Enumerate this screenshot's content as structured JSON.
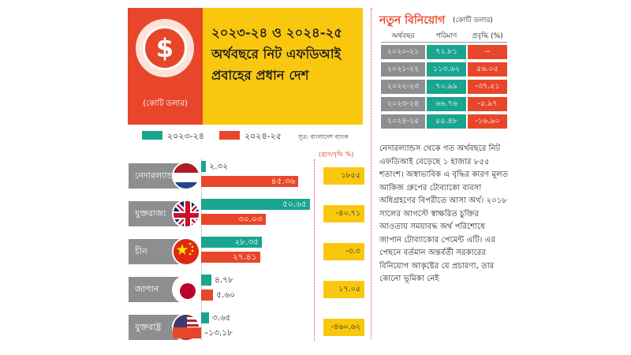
{
  "header": {
    "title": "২০২৩-২৪ ও ২০২৪-২৫ অর্থবছরে নিট এফডিআই প্রবাহের প্রধান দেশ",
    "unit": "(কোটি ডলার)",
    "coin_symbol": "$"
  },
  "legend": {
    "items": [
      "২০২৩-২৪",
      "২০২৪-২৫"
    ],
    "colors": [
      "#1aa58f",
      "#e8462b"
    ],
    "source": "সূত্র: বাংলাদেশ ব্যাংক",
    "growth_header": "(হ্রাস/বৃদ্ধি %)"
  },
  "chart_data": [
    {
      "type": "bar",
      "orientation": "horizontal",
      "unit": "কোটি ডলার",
      "categories": [
        "নেদারল্যান্ডস",
        "যুক্তরাজ্য",
        "চীন",
        "জাপান",
        "যুক্তরাষ্ট্র"
      ],
      "series": [
        {
          "name": "২০২৩-২৪",
          "values": [
            2.32,
            50.65,
            28.35,
            4.78,
            3.65
          ],
          "labels": [
            "২.৩২",
            "৫০.৬৫",
            "২৮.৩৫",
            "৪.৭৮",
            "৩.৬৫"
          ]
        },
        {
          "name": "২০২৪-২৫",
          "values": [
            45.36,
            30.03,
            27.41,
            5.6,
            -13.18
          ],
          "labels": [
            "৪৫.৩৬",
            "৩০.০৩",
            "২৭.৪১",
            "৫.৬০",
            "–১৩.১৮"
          ]
        }
      ],
      "growth_percent": [
        1855,
        -40.71,
        -3.3,
        17.05,
        -460.62
      ],
      "growth_labels": [
        "১৮৫৫",
        "-৪০.৭১",
        "-৩.৩",
        "১৭.০৫",
        "-৪৬০.৬২"
      ],
      "flag_icons": [
        "netherlands-flag-icon",
        "uk-flag-icon",
        "china-flag-icon",
        "japan-flag-icon",
        "usa-flag-icon"
      ]
    },
    {
      "type": "table",
      "title": "নতুন বিনিয়োগ",
      "unit": "(কোটি ডলার)",
      "columns": [
        "অর্থবছর",
        "পরিমাণ",
        "প্রবৃদ্ধি (%)"
      ],
      "rows": [
        [
          "২০২০-২১",
          "৭২.৮১",
          "--"
        ],
        [
          "২০২১-২২",
          "১১৩.৬২",
          "৫৬.০৫"
        ],
        [
          "২০২২-২৩",
          "৭০.৯৯",
          "-৩৭.৫১"
        ],
        [
          "২০২৩-২৪",
          "৬৬.৭৬",
          "-৫.৯৭"
        ],
        [
          "২০২৪-২৫",
          "৫৫.৪৮",
          "-১৬.৯০"
        ]
      ],
      "amounts": [
        72.81,
        113.62,
        70.99,
        66.76,
        55.48
      ],
      "growth": [
        null,
        56.05,
        -37.51,
        -5.97,
        -16.9
      ]
    }
  ],
  "colors": {
    "accent_red": "#e8462b",
    "accent_yellow": "#f9c80e",
    "teal": "#1aa58f",
    "gray": "#8d8e90"
  },
  "article": {
    "body": "নেদারল্যান্ডস থেকে গত অর্থবছরে নিট এফডিআই বেড়েছে ১ হাজার ৮৫৫ শতাংশ। অস্বাভাবিক এ বৃদ্ধির কারণ মূলত আকিজ গ্রুপের টোব্যাকো ব্যবসা অধিগ্রহণের বিপরীতে আসা অর্থ। ২০১৮ সালের আগস্টে স্বাক্ষরিত চুক্তির আওতায় সময়াবদ্ধ অর্থ পরিশোধে জাপান টোব্যাকোর পেমেন্ট এটি। এর পেছনে বর্তমান অন্তর্বর্তী সরকারের বিনিয়োগ আকৃষ্টের যে প্রচারণা, তার কোনো ভূমিকা নেই"
  }
}
